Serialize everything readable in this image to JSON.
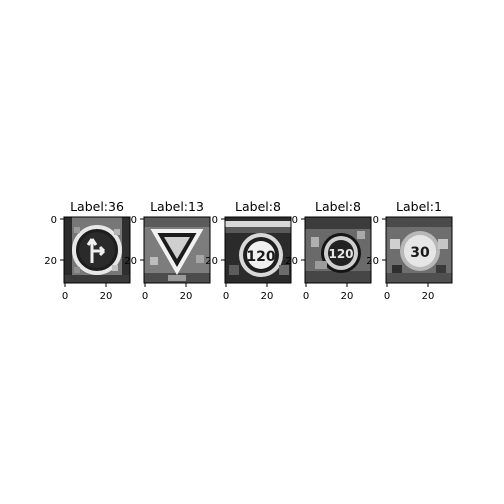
{
  "figure": {
    "background": "#ffffff",
    "panels": [
      {
        "title": "Label:36",
        "y_ticks": [
          "0",
          "20"
        ],
        "x_ticks": [
          "0",
          "20"
        ],
        "content": "grayscale traffic sign: circular sign with arrows (straight or right)"
      },
      {
        "title": "Label:13",
        "y_ticks": [
          "0",
          "20"
        ],
        "x_ticks": [
          "0",
          "20"
        ],
        "content": "grayscale traffic sign: inverted triangle (yield)"
      },
      {
        "title": "Label:8",
        "y_ticks": [
          "0",
          "20"
        ],
        "x_ticks": [
          "0",
          "20"
        ],
        "content": "grayscale traffic sign: circular speed limit 120"
      },
      {
        "title": "Label:8",
        "y_ticks": [
          "0",
          "20"
        ],
        "x_ticks": [
          "0",
          "20"
        ],
        "content": "grayscale traffic sign: circular speed limit 120"
      },
      {
        "title": "Label:1",
        "y_ticks": [
          "0",
          "20"
        ],
        "x_ticks": [
          "0",
          "20"
        ],
        "content": "grayscale traffic sign: speed limit 30"
      }
    ]
  }
}
